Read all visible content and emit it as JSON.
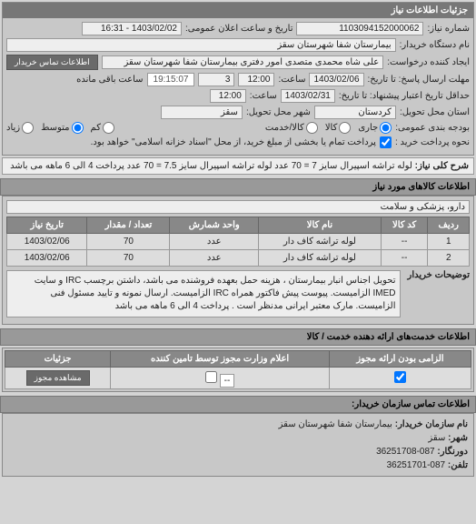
{
  "header": {
    "title": "جزئیات اطلاعات نیاز"
  },
  "basic": {
    "need_no_lbl": "شماره نیاز:",
    "need_no": "1103094152000062",
    "announce_lbl": "تاریخ و ساعت اعلان عمومی:",
    "announce": "1403/02/02 - 16:31",
    "requester_lbl": "نام دستگاه خریدار:",
    "requester": "بیمارستان شفا شهرستان سقز",
    "creator_lbl": "ایجاد کننده درخواست:",
    "creator": "علی شاه محمدی متصدی امور دفتری بیمارستان شفا شهرستان سقز",
    "contact_btn": "اطلاعات تماس خریدار",
    "deadline_lbl": "مهلت ارسال پاسخ: تا تاریخ:",
    "deadline_date": "1403/02/06",
    "time_lbl": "ساعت:",
    "deadline_time": "12:00",
    "days_remain": "3",
    "remain_suffix": "ساعت باقی مانده",
    "countdown": "19:15:07",
    "valid_lbl": "حداقل تاریخ اعتبار پیشنهاد: تا تاریخ:",
    "valid_date": "1403/02/31",
    "valid_time": "12:00",
    "province_lbl": "استان محل تحویل:",
    "province": "کردستان",
    "city_lbl": "شهر محل تحویل:",
    "city": "سقز",
    "budget_lbl": "بودجه بندی عمومی:",
    "choice_lbl": "نحوه پرداخت خرید :",
    "payment_note": "پرداخت تمام یا بخشی از مبلغ خرید، از محل \"اسناد خزانه اسلامی\" خواهد بود.",
    "rb_govt": "جاری",
    "rb_project": "کالا",
    "rb_cash": "کالا/خدمت",
    "rb_low": "کم",
    "rb_mid": "متوسط",
    "rb_high": "زیاد"
  },
  "need_desc": {
    "lbl": "شرح کلی نیاز:",
    "text": "لوله تراشه اسپیرال سایز 7 = 70 عدد لوله تراشه اسپیرال سایز 7.5 = 70 عدد پرداخت 4 الی 6 ماهه می باشد"
  },
  "goods": {
    "title": "اطلاعات کالاهای مورد نیاز",
    "cat_lbl": "",
    "category": "دارو، پزشکی و سلامت",
    "columns": [
      "ردیف",
      "کد کالا",
      "نام کالا",
      "واحد شمارش",
      "تعداد / مقدار",
      "تاریخ نیاز"
    ],
    "rows": [
      [
        "1",
        "--",
        "لوله تراشه کاف دار",
        "عدد",
        "70",
        "1403/02/06"
      ],
      [
        "2",
        "--",
        "لوله تراشه کاف دار",
        "عدد",
        "70",
        "1403/02/06"
      ]
    ],
    "note_lbl": "توضیحات خریدار",
    "note": "تحویل اجناس انبار بیمارستان ، هزینه حمل بعهده فروشنده می باشد، داشتن برچسب IRC و سایت IMED الزامیست. پیوست پیش فاکتور همراه IRC الزامیست. ارسال نمونه و تایید مسئول فنی الزامیست. مارک معتبر ایرانی مدنظر است . پرداخت 4 الی 6 ماهه می باشد"
  },
  "services": {
    "title": "اطلاعات خدمت‌های ارائه دهنده خدمت / کالا"
  },
  "auth": {
    "cols": [
      "الزامی بودن ارائه مجوز",
      "اعلام وزارت مجوز توسط تامین کننده",
      "جزئیات"
    ],
    "combo_placeholder": "--",
    "view_btn": "مشاهده مجوز"
  },
  "footer": {
    "title": "اطلاعات تماس سازمان خریدار:",
    "org_lbl": "نام سازمان خریدار:",
    "org": "بیمارستان شفا شهرستان سقز",
    "city_lbl": "شهر:",
    "city": "سقز",
    "fax_lbl": "دورنگار:",
    "fax": "087-36251708",
    "tel_lbl": "تلفن:",
    "tel": "087-36251701"
  }
}
